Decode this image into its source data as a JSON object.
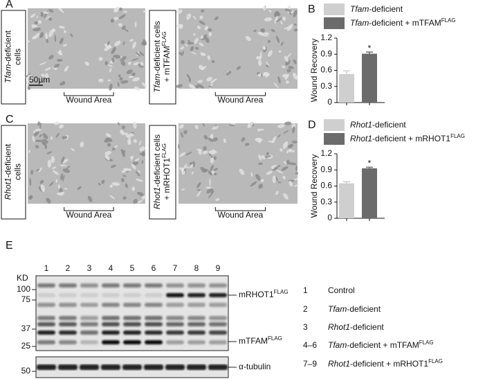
{
  "panels": [
    {
      "letter": "A",
      "conditions": [
        {
          "lines": [
            [
              {
                "i": "Tfam"
              },
              "-deficient"
            ],
            [
              "cells"
            ]
          ]
        },
        {
          "lines": [
            [
              {
                "i": "Tfam"
              },
              "-deficient cells"
            ],
            [
              "+ mTFAM",
              {
                "sup": "FLAG"
              }
            ]
          ]
        }
      ],
      "scale_bar": "50µm",
      "wound_labels": [
        "Wound Area",
        "Wound Area"
      ]
    },
    {
      "letter": "C",
      "conditions": [
        {
          "lines": [
            [
              {
                "i": "Rhot1"
              },
              "-deficient"
            ],
            [
              "cells"
            ]
          ]
        },
        {
          "lines": [
            [
              {
                "i": "Rhot1"
              },
              "-deficient cells"
            ],
            [
              "+ mRHOT1",
              {
                "sup": "FLAG"
              }
            ]
          ]
        }
      ],
      "wound_labels": [
        "Wound Area",
        "Wound Area"
      ]
    }
  ],
  "chart_data": [
    {
      "type": "bar",
      "panel": "B",
      "y_label": "Wound Recovery",
      "ylim": [
        0,
        1.2
      ],
      "yticks": [
        0,
        0.3,
        0.6,
        0.9,
        1.2
      ],
      "series": [
        {
          "name": [
            {
              "i": "Tfam"
            },
            "-deficient"
          ],
          "color": "#cfcfcf",
          "values": [
            0.53
          ],
          "errors": [
            0.06
          ]
        },
        {
          "name": [
            {
              "i": "Tfam"
            },
            "-deficient + mTFAM",
            {
              "sup": "FLAG"
            }
          ],
          "color": "#6b6b6b",
          "values": [
            0.91
          ],
          "errors": [
            0.03
          ],
          "significance": "*"
        }
      ]
    },
    {
      "type": "bar",
      "panel": "D",
      "y_label": "Wound Recovery",
      "ylim": [
        0,
        1.2
      ],
      "yticks": [
        0,
        0.3,
        0.6,
        0.9,
        1.2
      ],
      "series": [
        {
          "name": [
            {
              "i": "Rhot1"
            },
            "-deficient"
          ],
          "color": "#cfcfcf",
          "values": [
            0.65
          ],
          "errors": [
            0.03
          ]
        },
        {
          "name": [
            {
              "i": "Rhot1"
            },
            "-deficient + mRHOT1",
            {
              "sup": "FLAG"
            }
          ],
          "color": "#6b6b6b",
          "values": [
            0.93
          ],
          "errors": [
            0.02
          ],
          "significance": "*"
        }
      ]
    }
  ],
  "blot": {
    "letter": "E",
    "lanes": [
      "1",
      "2",
      "3",
      "4",
      "5",
      "6",
      "7",
      "8",
      "9"
    ],
    "unit": "KD",
    "markers": [
      100,
      75,
      37,
      25
    ],
    "loading_marker": [
      50
    ],
    "band_labels": [
      [
        "mRHOT1",
        {
          "sup": "FLAG"
        }
      ],
      [
        "mTFAM",
        {
          "sup": "FLAG"
        }
      ]
    ],
    "loading_label": [
      {
        "sym": "α"
      },
      "-tubulin"
    ],
    "legend": [
      {
        "lanes": "1",
        "label": [
          "Control"
        ]
      },
      {
        "lanes": "2",
        "label": [
          {
            "i": "Tfam"
          },
          "-deficient"
        ]
      },
      {
        "lanes": "3",
        "label": [
          {
            "i": "Rhot1"
          },
          "-deficient"
        ]
      },
      {
        "lanes": "4–6",
        "label": [
          {
            "i": "Tfam"
          },
          "-deficient + mTFAM",
          {
            "sup": "FLAG"
          }
        ]
      },
      {
        "lanes": "7–9",
        "label": [
          {
            "i": "Rhot1"
          },
          "-deficient + mRHOT1",
          {
            "sup": "FLAG"
          }
        ]
      }
    ]
  }
}
